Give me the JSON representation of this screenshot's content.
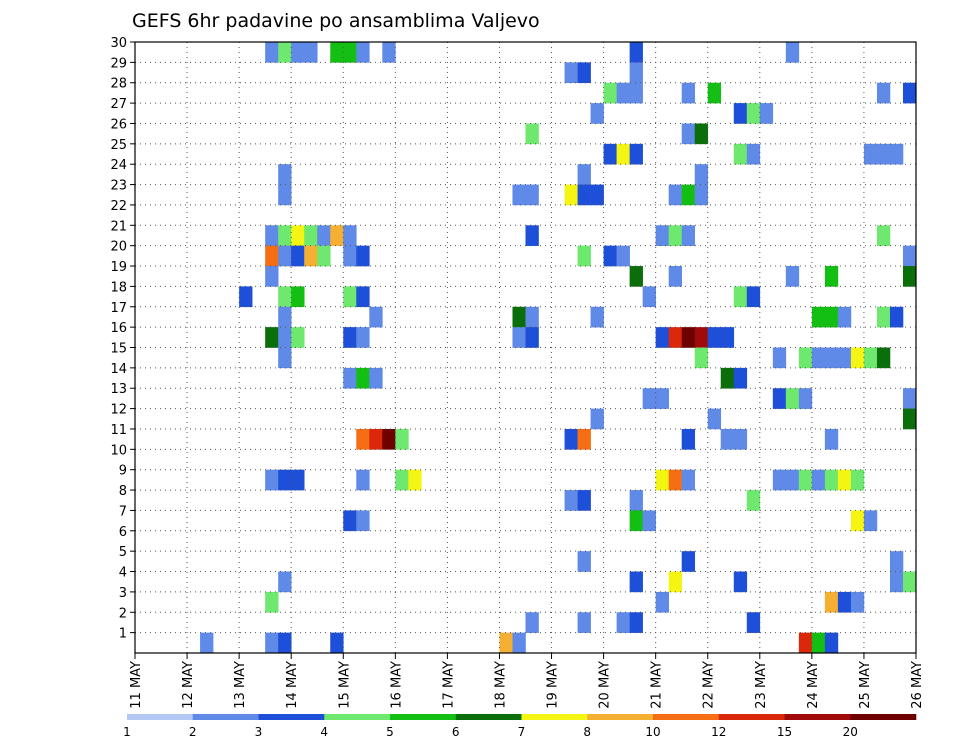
{
  "chart_data": {
    "type": "heatmap",
    "title": "GEFS 6hr padavine po ansamblima Valjevo",
    "x_tick_labels": [
      "11 MAY",
      "12 MAY",
      "13 MAY",
      "14 MAY",
      "15 MAY",
      "16 MAY",
      "17 MAY",
      "18 MAY",
      "19 MAY",
      "20 MAY",
      "21 MAY",
      "22 MAY",
      "23 MAY",
      "24 MAY",
      "25 MAY",
      "26 MAY"
    ],
    "y_tick_labels": [
      "1",
      "2",
      "3",
      "4",
      "5",
      "6",
      "7",
      "8",
      "9",
      "10",
      "11",
      "12",
      "13",
      "14",
      "15",
      "16",
      "17",
      "18",
      "19",
      "20",
      "21",
      "22",
      "23",
      "24",
      "25",
      "26",
      "27",
      "28",
      "29",
      "30"
    ],
    "xlim": [
      0,
      60
    ],
    "ylim": [
      0,
      30
    ],
    "grid": true,
    "colorbar": {
      "labels": [
        "1",
        "2",
        "3",
        "4",
        "5",
        "6",
        "7",
        "8",
        "10",
        "12",
        "15",
        "20"
      ],
      "colors": [
        "#b4c8f5",
        "#5f8ae8",
        "#1e4fd8",
        "#6ee86e",
        "#14bf14",
        "#0a6e0a",
        "#f5f514",
        "#f5af32",
        "#f56e14",
        "#dc280a",
        "#a00a0a",
        "#6e0000"
      ]
    },
    "cells": [
      [
        10,
        30,
        1
      ],
      [
        11,
        30,
        3
      ],
      [
        12,
        30,
        1
      ],
      [
        13,
        30,
        1
      ],
      [
        15,
        30,
        4
      ],
      [
        16,
        30,
        4
      ],
      [
        17,
        30,
        1
      ],
      [
        19,
        30,
        1
      ],
      [
        38,
        30,
        2
      ],
      [
        50,
        30,
        1
      ],
      [
        33,
        29,
        1
      ],
      [
        34,
        29,
        2
      ],
      [
        38,
        29,
        1
      ],
      [
        36,
        28,
        3
      ],
      [
        37,
        28,
        1
      ],
      [
        38,
        28,
        1
      ],
      [
        42,
        28,
        1
      ],
      [
        44,
        28,
        4
      ],
      [
        57,
        28,
        1
      ],
      [
        59,
        28,
        2
      ],
      [
        35,
        27,
        1
      ],
      [
        46,
        27,
        2
      ],
      [
        47,
        27,
        3
      ],
      [
        48,
        27,
        1
      ],
      [
        30,
        26,
        3
      ],
      [
        42,
        26,
        1
      ],
      [
        43,
        26,
        5
      ],
      [
        36,
        25,
        2
      ],
      [
        37,
        25,
        6
      ],
      [
        38,
        25,
        2
      ],
      [
        46,
        25,
        3
      ],
      [
        47,
        25,
        1
      ],
      [
        56,
        25,
        1
      ],
      [
        57,
        25,
        1
      ],
      [
        58,
        25,
        1
      ],
      [
        11,
        24,
        1
      ],
      [
        34,
        24,
        1
      ],
      [
        43,
        24,
        1
      ],
      [
        11,
        23,
        1
      ],
      [
        29,
        23,
        1
      ],
      [
        30,
        23,
        1
      ],
      [
        33,
        23,
        6
      ],
      [
        34,
        23,
        2
      ],
      [
        35,
        23,
        2
      ],
      [
        41,
        23,
        1
      ],
      [
        42,
        23,
        4
      ],
      [
        43,
        23,
        1
      ],
      [
        10,
        21,
        1
      ],
      [
        11,
        21,
        3
      ],
      [
        12,
        21,
        6
      ],
      [
        13,
        21,
        3
      ],
      [
        14,
        21,
        1
      ],
      [
        15,
        21,
        7
      ],
      [
        16,
        21,
        1
      ],
      [
        30,
        21,
        2
      ],
      [
        40,
        21,
        1
      ],
      [
        41,
        21,
        3
      ],
      [
        42,
        21,
        1
      ],
      [
        57,
        21,
        3
      ],
      [
        10,
        20,
        8
      ],
      [
        11,
        20,
        1
      ],
      [
        12,
        20,
        2
      ],
      [
        13,
        20,
        7
      ],
      [
        14,
        20,
        3
      ],
      [
        16,
        20,
        1
      ],
      [
        17,
        20,
        2
      ],
      [
        34,
        20,
        3
      ],
      [
        36,
        20,
        2
      ],
      [
        37,
        20,
        1
      ],
      [
        59,
        20,
        1
      ],
      [
        10,
        19,
        1
      ],
      [
        38,
        19,
        5
      ],
      [
        41,
        19,
        1
      ],
      [
        50,
        19,
        1
      ],
      [
        53,
        19,
        4
      ],
      [
        59,
        19,
        5
      ],
      [
        8,
        18,
        2
      ],
      [
        11,
        18,
        3
      ],
      [
        12,
        18,
        4
      ],
      [
        16,
        18,
        3
      ],
      [
        17,
        18,
        2
      ],
      [
        39,
        18,
        1
      ],
      [
        46,
        18,
        3
      ],
      [
        47,
        18,
        2
      ],
      [
        11,
        17,
        1
      ],
      [
        18,
        17,
        1
      ],
      [
        29,
        17,
        5
      ],
      [
        30,
        17,
        1
      ],
      [
        35,
        17,
        1
      ],
      [
        52,
        17,
        4
      ],
      [
        53,
        17,
        4
      ],
      [
        54,
        17,
        1
      ],
      [
        57,
        17,
        3
      ],
      [
        58,
        17,
        2
      ],
      [
        10,
        16,
        5
      ],
      [
        11,
        16,
        1
      ],
      [
        12,
        16,
        3
      ],
      [
        16,
        16,
        2
      ],
      [
        17,
        16,
        1
      ],
      [
        29,
        16,
        1
      ],
      [
        30,
        16,
        2
      ],
      [
        40,
        16,
        2
      ],
      [
        41,
        16,
        9
      ],
      [
        42,
        16,
        11
      ],
      [
        43,
        16,
        10
      ],
      [
        44,
        16,
        2
      ],
      [
        45,
        16,
        2
      ],
      [
        11,
        15,
        1
      ],
      [
        43,
        15,
        3
      ],
      [
        49,
        15,
        1
      ],
      [
        51,
        15,
        3
      ],
      [
        52,
        15,
        1
      ],
      [
        53,
        15,
        1
      ],
      [
        54,
        15,
        1
      ],
      [
        55,
        15,
        6
      ],
      [
        56,
        15,
        3
      ],
      [
        57,
        15,
        5
      ],
      [
        16,
        14,
        1
      ],
      [
        17,
        14,
        4
      ],
      [
        18,
        14,
        1
      ],
      [
        45,
        14,
        5
      ],
      [
        46,
        14,
        2
      ],
      [
        39,
        13,
        1
      ],
      [
        40,
        13,
        1
      ],
      [
        49,
        13,
        2
      ],
      [
        50,
        13,
        3
      ],
      [
        51,
        13,
        1
      ],
      [
        59,
        13,
        1
      ],
      [
        35,
        12,
        1
      ],
      [
        44,
        12,
        1
      ],
      [
        59,
        12,
        5
      ],
      [
        17,
        11,
        8
      ],
      [
        18,
        11,
        9
      ],
      [
        19,
        11,
        11
      ],
      [
        20,
        11,
        3
      ],
      [
        33,
        11,
        2
      ],
      [
        34,
        11,
        8
      ],
      [
        42,
        11,
        2
      ],
      [
        45,
        11,
        1
      ],
      [
        46,
        11,
        1
      ],
      [
        53,
        11,
        1
      ],
      [
        10,
        9,
        1
      ],
      [
        11,
        9,
        2
      ],
      [
        12,
        9,
        2
      ],
      [
        17,
        9,
        1
      ],
      [
        20,
        9,
        3
      ],
      [
        21,
        9,
        6
      ],
      [
        40,
        9,
        6
      ],
      [
        41,
        9,
        8
      ],
      [
        42,
        9,
        1
      ],
      [
        49,
        9,
        1
      ],
      [
        50,
        9,
        1
      ],
      [
        51,
        9,
        3
      ],
      [
        52,
        9,
        1
      ],
      [
        53,
        9,
        3
      ],
      [
        54,
        9,
        6
      ],
      [
        55,
        9,
        3
      ],
      [
        33,
        8,
        1
      ],
      [
        34,
        8,
        2
      ],
      [
        38,
        8,
        1
      ],
      [
        47,
        8,
        3
      ],
      [
        16,
        7,
        2
      ],
      [
        17,
        7,
        1
      ],
      [
        38,
        7,
        4
      ],
      [
        39,
        7,
        1
      ],
      [
        55,
        7,
        6
      ],
      [
        56,
        7,
        1
      ],
      [
        34,
        5,
        1
      ],
      [
        42,
        5,
        2
      ],
      [
        58,
        5,
        1
      ],
      [
        11,
        4,
        1
      ],
      [
        38,
        4,
        2
      ],
      [
        41,
        4,
        6
      ],
      [
        46,
        4,
        2
      ],
      [
        58,
        4,
        1
      ],
      [
        59,
        4,
        3
      ],
      [
        10,
        3,
        3
      ],
      [
        40,
        3,
        1
      ],
      [
        53,
        3,
        7
      ],
      [
        54,
        3,
        2
      ],
      [
        55,
        3,
        1
      ],
      [
        30,
        2,
        1
      ],
      [
        34,
        2,
        1
      ],
      [
        37,
        2,
        1
      ],
      [
        38,
        2,
        2
      ],
      [
        47,
        2,
        2
      ],
      [
        5,
        1,
        1
      ],
      [
        10,
        1,
        1
      ],
      [
        11,
        1,
        2
      ],
      [
        15,
        1,
        2
      ],
      [
        28,
        1,
        7
      ],
      [
        29,
        1,
        1
      ],
      [
        51,
        1,
        9
      ],
      [
        52,
        1,
        4
      ],
      [
        53,
        1,
        2
      ]
    ]
  }
}
